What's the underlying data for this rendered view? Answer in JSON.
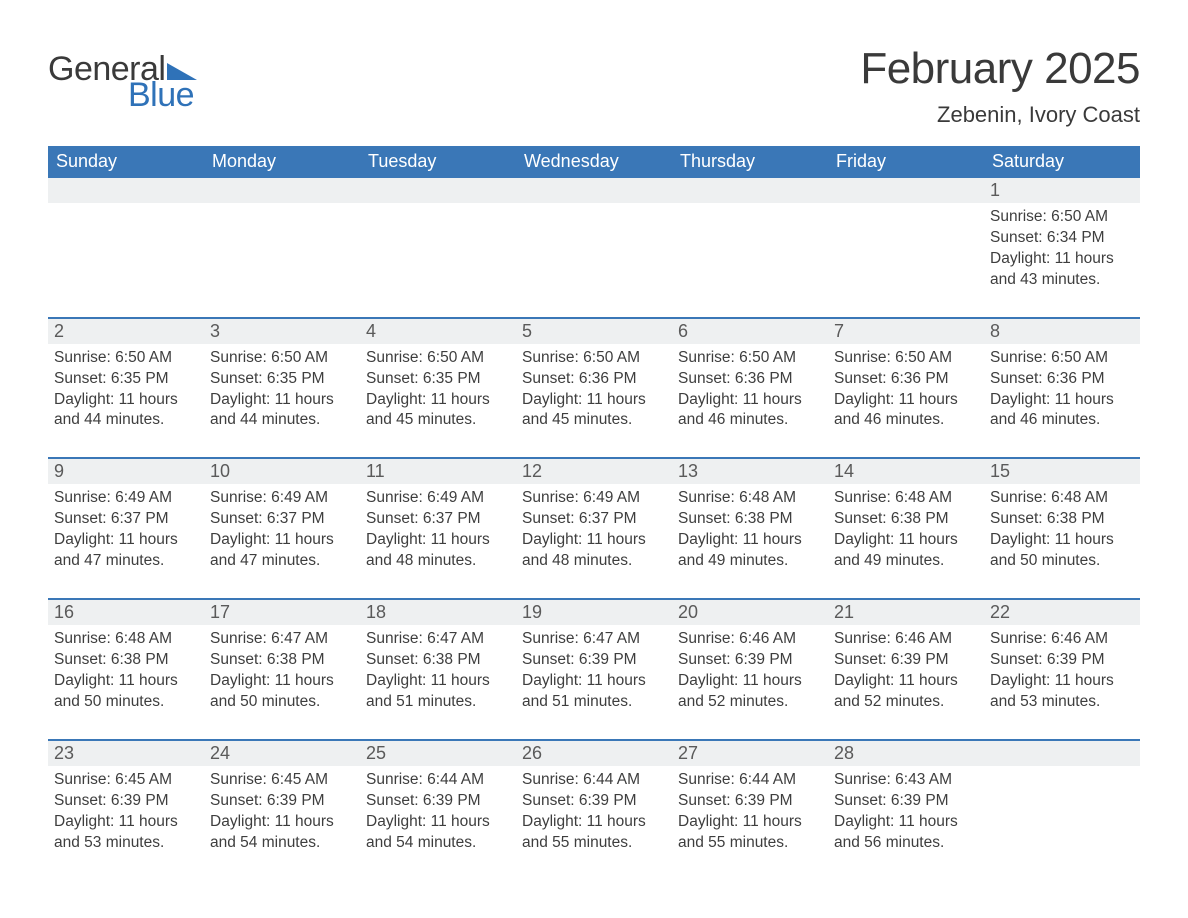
{
  "logo": {
    "text1": "General",
    "text2": "Blue"
  },
  "title": "February 2025",
  "location": "Zebenin, Ivory Coast",
  "colors": {
    "header_bg": "#3a77b7",
    "header_text": "#ffffff",
    "daynum_bg": "#eef0f1",
    "text": "#3a3a3a",
    "accent": "#2f72b8",
    "row_border": "#3a77b7"
  },
  "day_headers": [
    "Sunday",
    "Monday",
    "Tuesday",
    "Wednesday",
    "Thursday",
    "Friday",
    "Saturday"
  ],
  "weeks": [
    [
      null,
      null,
      null,
      null,
      null,
      null,
      {
        "n": "1",
        "sunrise": "Sunrise: 6:50 AM",
        "sunset": "Sunset: 6:34 PM",
        "daylight": "Daylight: 11 hours and 43 minutes."
      }
    ],
    [
      {
        "n": "2",
        "sunrise": "Sunrise: 6:50 AM",
        "sunset": "Sunset: 6:35 PM",
        "daylight": "Daylight: 11 hours and 44 minutes."
      },
      {
        "n": "3",
        "sunrise": "Sunrise: 6:50 AM",
        "sunset": "Sunset: 6:35 PM",
        "daylight": "Daylight: 11 hours and 44 minutes."
      },
      {
        "n": "4",
        "sunrise": "Sunrise: 6:50 AM",
        "sunset": "Sunset: 6:35 PM",
        "daylight": "Daylight: 11 hours and 45 minutes."
      },
      {
        "n": "5",
        "sunrise": "Sunrise: 6:50 AM",
        "sunset": "Sunset: 6:36 PM",
        "daylight": "Daylight: 11 hours and 45 minutes."
      },
      {
        "n": "6",
        "sunrise": "Sunrise: 6:50 AM",
        "sunset": "Sunset: 6:36 PM",
        "daylight": "Daylight: 11 hours and 46 minutes."
      },
      {
        "n": "7",
        "sunrise": "Sunrise: 6:50 AM",
        "sunset": "Sunset: 6:36 PM",
        "daylight": "Daylight: 11 hours and 46 minutes."
      },
      {
        "n": "8",
        "sunrise": "Sunrise: 6:50 AM",
        "sunset": "Sunset: 6:36 PM",
        "daylight": "Daylight: 11 hours and 46 minutes."
      }
    ],
    [
      {
        "n": "9",
        "sunrise": "Sunrise: 6:49 AM",
        "sunset": "Sunset: 6:37 PM",
        "daylight": "Daylight: 11 hours and 47 minutes."
      },
      {
        "n": "10",
        "sunrise": "Sunrise: 6:49 AM",
        "sunset": "Sunset: 6:37 PM",
        "daylight": "Daylight: 11 hours and 47 minutes."
      },
      {
        "n": "11",
        "sunrise": "Sunrise: 6:49 AM",
        "sunset": "Sunset: 6:37 PM",
        "daylight": "Daylight: 11 hours and 48 minutes."
      },
      {
        "n": "12",
        "sunrise": "Sunrise: 6:49 AM",
        "sunset": "Sunset: 6:37 PM",
        "daylight": "Daylight: 11 hours and 48 minutes."
      },
      {
        "n": "13",
        "sunrise": "Sunrise: 6:48 AM",
        "sunset": "Sunset: 6:38 PM",
        "daylight": "Daylight: 11 hours and 49 minutes."
      },
      {
        "n": "14",
        "sunrise": "Sunrise: 6:48 AM",
        "sunset": "Sunset: 6:38 PM",
        "daylight": "Daylight: 11 hours and 49 minutes."
      },
      {
        "n": "15",
        "sunrise": "Sunrise: 6:48 AM",
        "sunset": "Sunset: 6:38 PM",
        "daylight": "Daylight: 11 hours and 50 minutes."
      }
    ],
    [
      {
        "n": "16",
        "sunrise": "Sunrise: 6:48 AM",
        "sunset": "Sunset: 6:38 PM",
        "daylight": "Daylight: 11 hours and 50 minutes."
      },
      {
        "n": "17",
        "sunrise": "Sunrise: 6:47 AM",
        "sunset": "Sunset: 6:38 PM",
        "daylight": "Daylight: 11 hours and 50 minutes."
      },
      {
        "n": "18",
        "sunrise": "Sunrise: 6:47 AM",
        "sunset": "Sunset: 6:38 PM",
        "daylight": "Daylight: 11 hours and 51 minutes."
      },
      {
        "n": "19",
        "sunrise": "Sunrise: 6:47 AM",
        "sunset": "Sunset: 6:39 PM",
        "daylight": "Daylight: 11 hours and 51 minutes."
      },
      {
        "n": "20",
        "sunrise": "Sunrise: 6:46 AM",
        "sunset": "Sunset: 6:39 PM",
        "daylight": "Daylight: 11 hours and 52 minutes."
      },
      {
        "n": "21",
        "sunrise": "Sunrise: 6:46 AM",
        "sunset": "Sunset: 6:39 PM",
        "daylight": "Daylight: 11 hours and 52 minutes."
      },
      {
        "n": "22",
        "sunrise": "Sunrise: 6:46 AM",
        "sunset": "Sunset: 6:39 PM",
        "daylight": "Daylight: 11 hours and 53 minutes."
      }
    ],
    [
      {
        "n": "23",
        "sunrise": "Sunrise: 6:45 AM",
        "sunset": "Sunset: 6:39 PM",
        "daylight": "Daylight: 11 hours and 53 minutes."
      },
      {
        "n": "24",
        "sunrise": "Sunrise: 6:45 AM",
        "sunset": "Sunset: 6:39 PM",
        "daylight": "Daylight: 11 hours and 54 minutes."
      },
      {
        "n": "25",
        "sunrise": "Sunrise: 6:44 AM",
        "sunset": "Sunset: 6:39 PM",
        "daylight": "Daylight: 11 hours and 54 minutes."
      },
      {
        "n": "26",
        "sunrise": "Sunrise: 6:44 AM",
        "sunset": "Sunset: 6:39 PM",
        "daylight": "Daylight: 11 hours and 55 minutes."
      },
      {
        "n": "27",
        "sunrise": "Sunrise: 6:44 AM",
        "sunset": "Sunset: 6:39 PM",
        "daylight": "Daylight: 11 hours and 55 minutes."
      },
      {
        "n": "28",
        "sunrise": "Sunrise: 6:43 AM",
        "sunset": "Sunset: 6:39 PM",
        "daylight": "Daylight: 11 hours and 56 minutes."
      },
      null
    ]
  ]
}
